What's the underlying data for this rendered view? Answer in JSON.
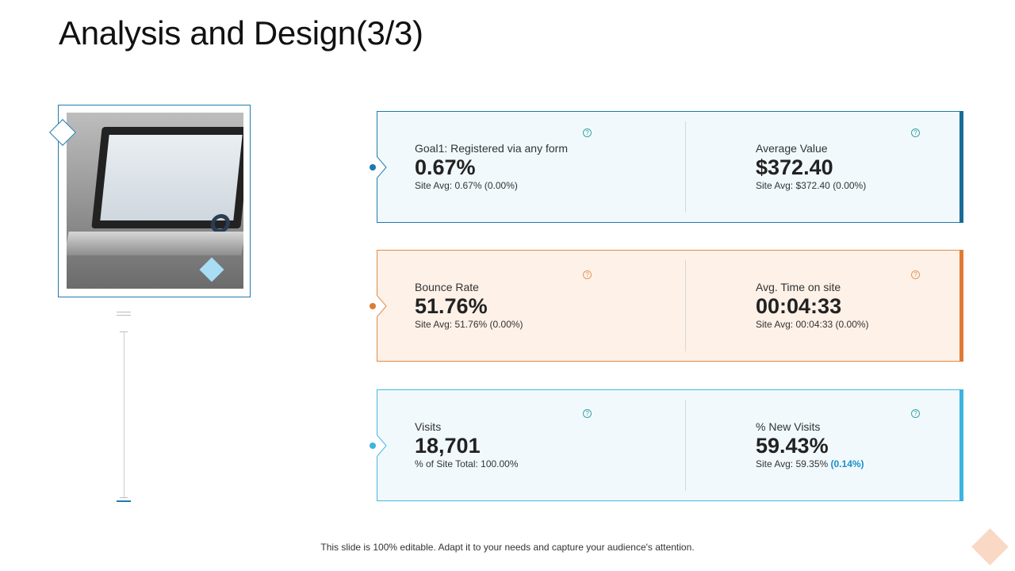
{
  "title": "Analysis and Design(3/3)",
  "footer": "This slide is 100% editable. Adapt it to your needs and capture your audience's attention.",
  "colors": {
    "blue": "#1a6c96",
    "orange": "#e07b35",
    "cyan": "#3db3e0",
    "highlight": "#1a8fc9"
  },
  "cards": [
    {
      "color": "blue",
      "left": {
        "label": "Goal1: Registered via any form",
        "value": "0.67%",
        "avg": "Site Avg:  0.67% (0.00%)"
      },
      "right": {
        "label": "Average Value",
        "value": "$372.40",
        "avg": "Site Avg:  $372.40 (0.00%)"
      }
    },
    {
      "color": "orange",
      "left": {
        "label": "Bounce Rate",
        "value": "51.76%",
        "avg": "Site Avg:  51.76% (0.00%)"
      },
      "right": {
        "label": "Avg. Time on site",
        "value": "00:04:33",
        "avg": "Site Avg:  00:04:33 (0.00%)"
      }
    },
    {
      "color": "cyan",
      "left": {
        "label": "Visits",
        "value": "18,701",
        "avg": "% of Site Total:  100.00%"
      },
      "right": {
        "label": "% New Visits",
        "value": "59.43%",
        "avg_prefix": "Site Avg:  59.35% ",
        "avg_highlight": "(0.14%)"
      }
    }
  ],
  "help_icon": "question-circle-icon"
}
